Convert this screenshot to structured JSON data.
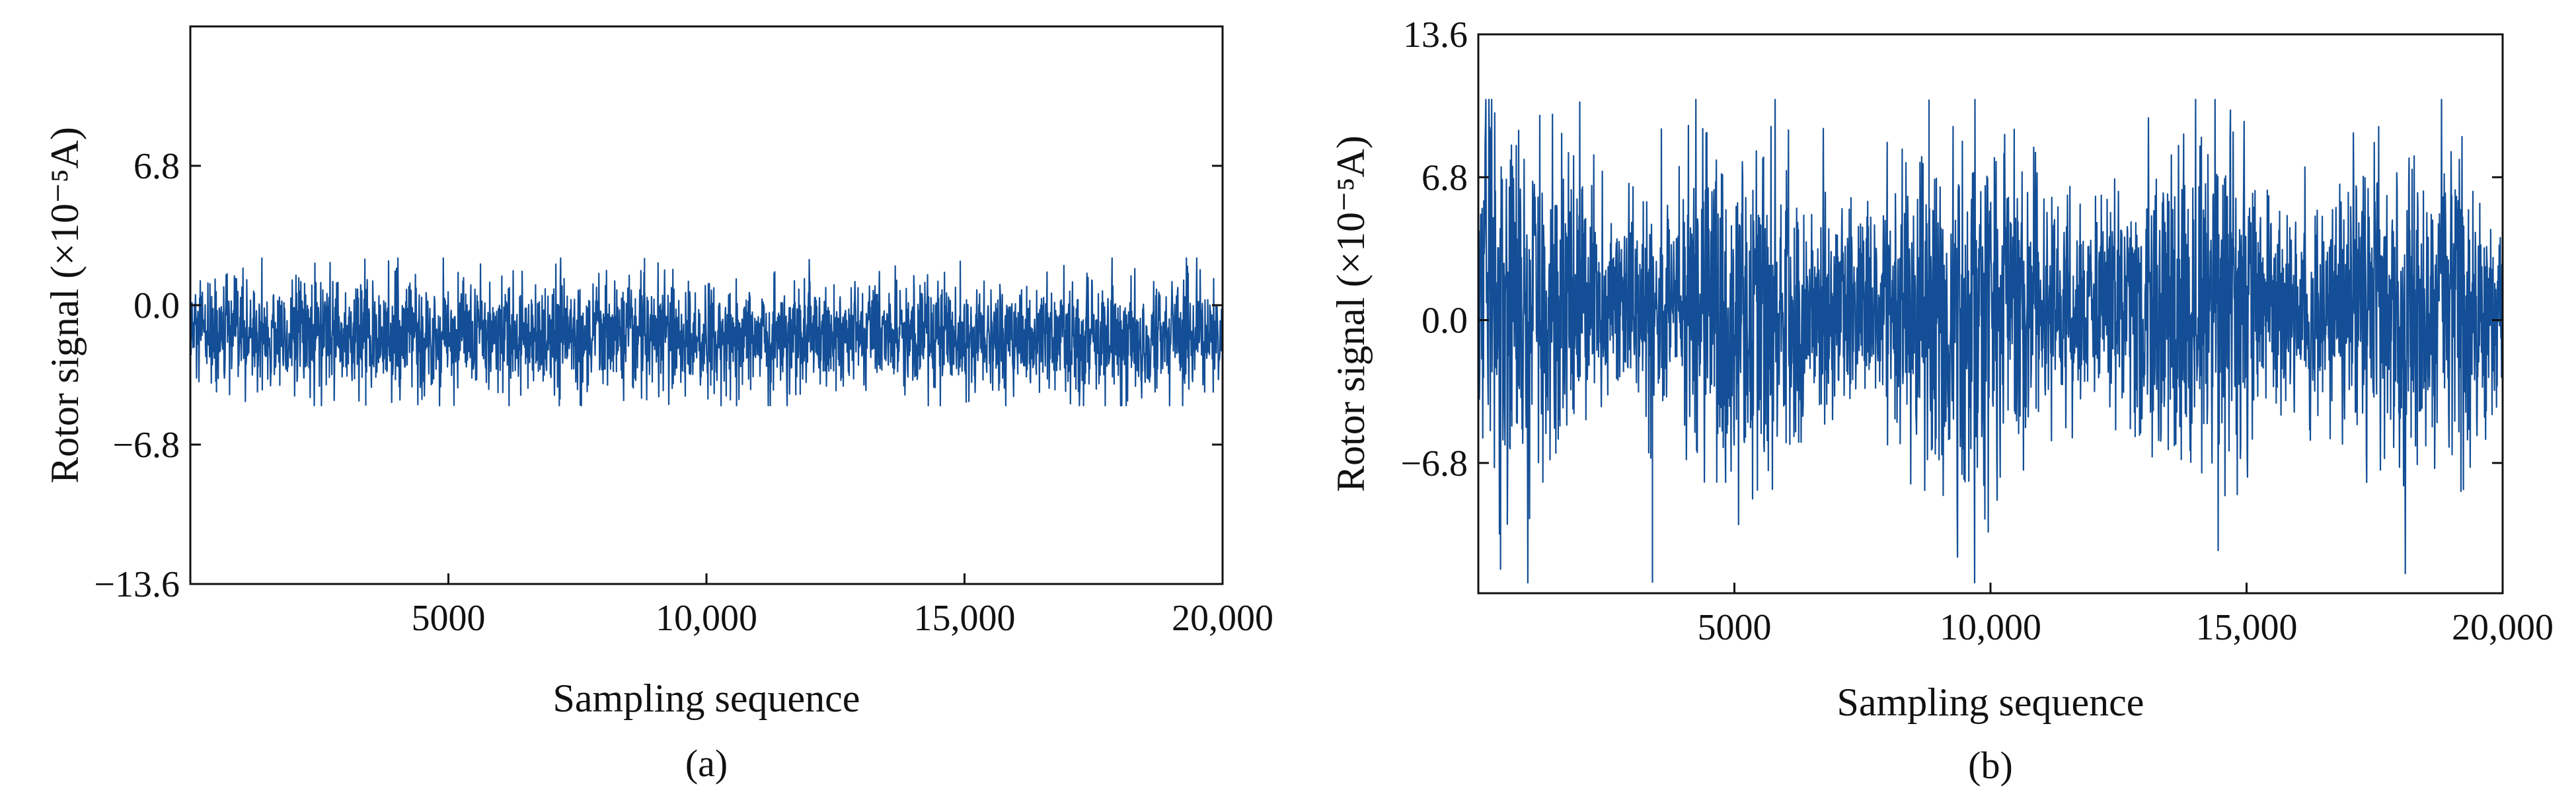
{
  "chart_data": [
    {
      "type": "line",
      "panel_label": "(a)",
      "xlabel": "Sampling sequence",
      "ylabel": "Rotor signal (×10⁻⁵A)",
      "xlim": [
        0,
        20000
      ],
      "ylim": [
        -13.6,
        13.6
      ],
      "x_ticks": [
        5000,
        10000,
        15000,
        20000
      ],
      "x_tick_labels": [
        "5000",
        "10,000",
        "15,000",
        "20,000"
      ],
      "y_ticks": [
        6.8,
        0.0,
        -6.8,
        -13.6
      ],
      "y_tick_labels": [
        "6.8",
        "0.0",
        "−6.8",
        "−13.6"
      ],
      "grid": false,
      "series": [
        {
          "n_samples": 20000,
          "mean": -1.6,
          "typical_range": [
            -4.0,
            1.0
          ],
          "peak_min": -4.9,
          "peak_max": 2.3,
          "color": "#134e96"
        }
      ]
    },
    {
      "type": "line",
      "panel_label": "(b)",
      "xlabel": "Sampling sequence",
      "ylabel": "Rotor signal (×10⁻⁵A)",
      "xlim": [
        0,
        20000
      ],
      "ylim": [
        -13.0,
        13.6
      ],
      "x_ticks": [
        5000,
        10000,
        15000,
        20000
      ],
      "x_tick_labels": [
        "5000",
        "10,000",
        "15,000",
        "20,000"
      ],
      "y_ticks": [
        13.6,
        6.8,
        0.0,
        -6.8
      ],
      "y_tick_labels": [
        "13.6",
        "6.8",
        "0.0",
        "−6.8"
      ],
      "grid": false,
      "series": [
        {
          "n_samples": 20000,
          "mean": 0.5,
          "typical_range": [
            -6.8,
            8.0
          ],
          "peak_min": -12.5,
          "peak_max": 10.5,
          "color": "#134e96"
        }
      ]
    }
  ]
}
